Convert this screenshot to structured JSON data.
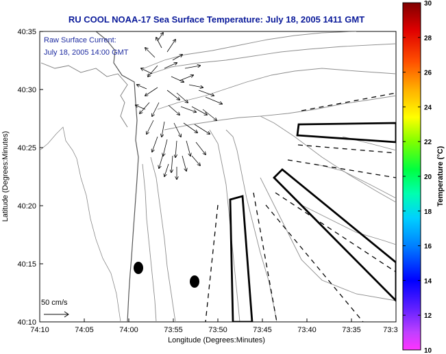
{
  "title": "RU COOL  NOAA-17  Sea Surface Temperature:  July 18, 2005 1411 GMT",
  "xlabel": "Longitude (Degrees:Minutes)",
  "ylabel": "Latitude (Degrees:Minutes)",
  "x_ticks": [
    "74:10",
    "74:05",
    "74:00",
    "73:55",
    "73:50",
    "73:45",
    "73:40",
    "73:35",
    "73:3"
  ],
  "y_ticks": [
    "40:35",
    "40:30",
    "40:25",
    "40:20",
    "40:15",
    "40:10"
  ],
  "annotation": {
    "line1": "Raw Surface Current:",
    "line2": "July 18, 2005 14:00 GMT"
  },
  "scale_label": "50 cm/s",
  "colorbar": {
    "label": "Temperature (°C)",
    "ticks": [
      "30",
      "28",
      "26",
      "24",
      "22",
      "20",
      "18",
      "16",
      "14",
      "12",
      "10"
    ],
    "range": [
      10,
      30
    ]
  },
  "colors": {
    "title": "#0a1a9a",
    "annotation": "#1c2aa0",
    "contour": "#8c8c8c",
    "coast": "#555555"
  }
}
